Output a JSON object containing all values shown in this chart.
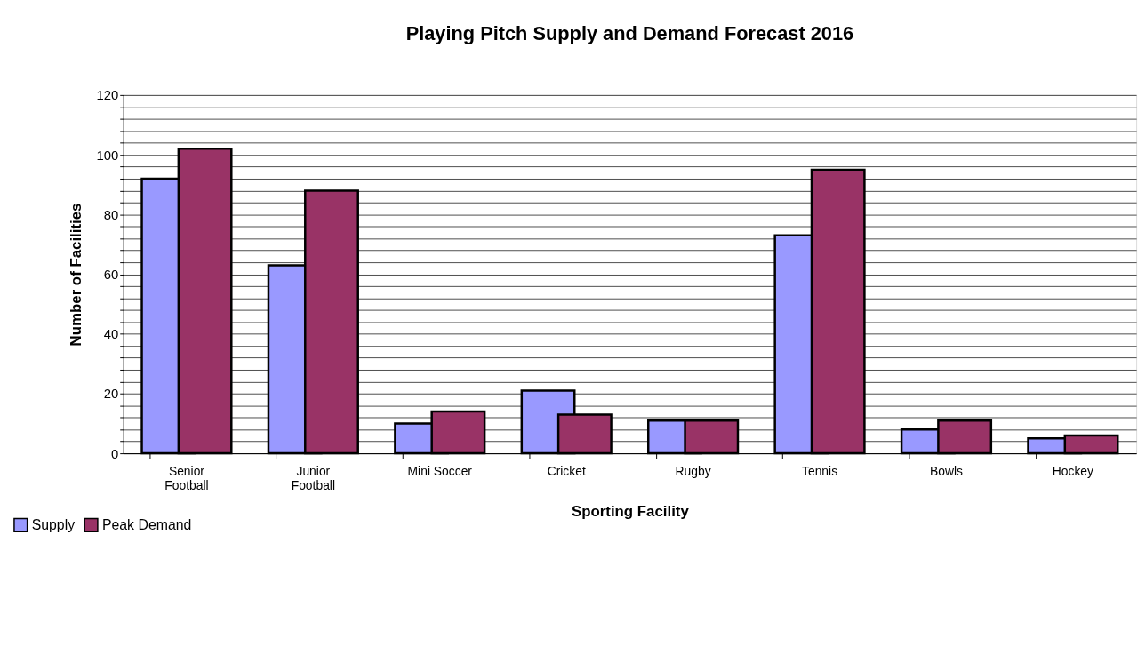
{
  "chart_data": {
    "type": "bar",
    "title": "Playing Pitch Supply and Demand Forecast 2016",
    "xlabel": "Sporting Facility",
    "ylabel": "Number of Facilities",
    "categories": [
      "Senior Football",
      "Junior Football",
      "Mini Soccer",
      "Cricket",
      "Rugby",
      "Tennis",
      "Bowls",
      "Hockey"
    ],
    "series": [
      {
        "name": "Supply",
        "color": "#9999ff",
        "values": [
          92,
          63,
          10,
          21,
          11,
          73,
          8,
          5
        ]
      },
      {
        "name": "Peak Demand",
        "color": "#993366",
        "values": [
          102,
          88,
          14,
          13,
          11,
          95,
          11,
          6
        ]
      }
    ],
    "ylim": [
      0,
      120
    ],
    "yticks": [
      0,
      {
        "value": 4,
        "label": null
      },
      {
        "value": 8,
        "label": null
      },
      {
        "value": 12,
        "label": null
      },
      {
        "value": 16,
        "label": null
      },
      20,
      {
        "value": 24,
        "label": null
      },
      {
        "value": 28,
        "label": null
      },
      {
        "value": 32,
        "label": null
      },
      {
        "value": 36,
        "label": null
      },
      40,
      {
        "value": 44,
        "label": null
      },
      {
        "value": 48,
        "label": null
      },
      {
        "value": 52,
        "label": null
      },
      {
        "value": 56,
        "label": null
      },
      60,
      {
        "value": 64,
        "label": null
      },
      {
        "value": 68,
        "label": null
      },
      {
        "value": 72,
        "label": null
      },
      {
        "value": 76,
        "label": null
      },
      80,
      {
        "value": 84,
        "label": null
      },
      {
        "value": 88,
        "label": null
      },
      {
        "value": 92,
        "label": null
      },
      {
        "value": 96,
        "label": null
      },
      100,
      {
        "value": 104,
        "label": null
      },
      {
        "value": 108,
        "label": null
      },
      {
        "value": 112,
        "label": null
      },
      {
        "value": 116,
        "label": null
      },
      120
    ],
    "grid": "y",
    "legend": "bottom left"
  }
}
